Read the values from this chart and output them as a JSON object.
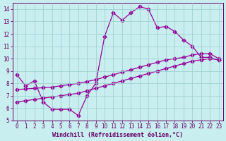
{
  "bg_color": "#c8eef0",
  "line_color": "#990099",
  "grid_color": "#99cccc",
  "xlabel": "Windchill (Refroidissement éolien,°C)",
  "xlim": [
    -0.5,
    23.5
  ],
  "ylim": [
    5,
    14.5
  ],
  "xticks": [
    0,
    1,
    2,
    3,
    4,
    5,
    6,
    7,
    8,
    9,
    10,
    11,
    12,
    13,
    14,
    15,
    16,
    17,
    18,
    19,
    20,
    21,
    22,
    23
  ],
  "yticks": [
    5,
    6,
    7,
    8,
    9,
    10,
    11,
    12,
    13,
    14
  ],
  "jagged_x": [
    0,
    1,
    2,
    3,
    4,
    5,
    6,
    7,
    8,
    9,
    10,
    11,
    12,
    13,
    14,
    15,
    16,
    17,
    18,
    19,
    20,
    21,
    22,
    23
  ],
  "jagged_y": [
    8.7,
    7.8,
    8.2,
    6.5,
    5.9,
    5.9,
    5.9,
    5.4,
    7.0,
    8.0,
    11.8,
    13.7,
    13.1,
    13.7,
    14.2,
    14.0,
    12.5,
    12.6,
    12.2,
    11.5,
    11.0,
    10.1,
    10.1,
    9.9
  ],
  "line2_x": [
    0,
    1,
    2,
    3,
    4,
    5,
    6,
    7,
    8,
    9,
    10,
    11,
    12,
    13,
    14,
    15,
    16,
    17,
    18,
    19,
    20,
    21,
    22,
    23
  ],
  "line2_y": [
    6.5,
    6.6,
    6.7,
    6.8,
    6.9,
    7.0,
    7.1,
    7.2,
    7.4,
    7.6,
    7.8,
    8.0,
    8.2,
    8.4,
    8.6,
    8.8,
    9.0,
    9.2,
    9.4,
    9.6,
    9.8,
    9.9,
    10.0,
    9.9
  ],
  "line3_x": [
    0,
    1,
    2,
    3,
    4,
    5,
    6,
    7,
    8,
    9,
    10,
    11,
    12,
    13,
    14,
    15,
    16,
    17,
    18,
    19,
    20,
    21,
    22,
    23
  ],
  "line3_y": [
    7.5,
    7.55,
    7.6,
    7.65,
    7.7,
    7.8,
    7.9,
    8.0,
    8.15,
    8.3,
    8.5,
    8.7,
    8.9,
    9.1,
    9.3,
    9.5,
    9.7,
    9.9,
    10.0,
    10.1,
    10.3,
    10.4,
    10.4,
    10.0
  ]
}
